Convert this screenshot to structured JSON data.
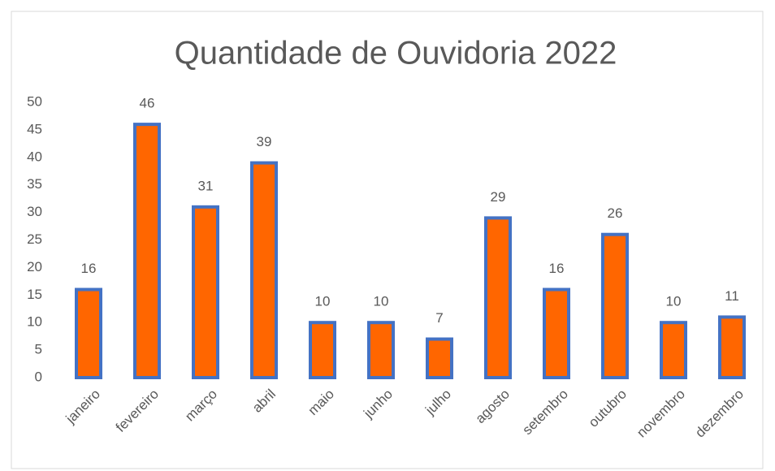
{
  "chart_data": {
    "type": "bar",
    "title": "Quantidade de Ouvidoria 2022",
    "categories": [
      "janeiro",
      "fevereiro",
      "março",
      "abril",
      "maio",
      "junho",
      "julho",
      "agosto",
      "setembro",
      "outubro",
      "novembro",
      "dezembro"
    ],
    "values": [
      16,
      46,
      31,
      39,
      10,
      10,
      7,
      29,
      16,
      26,
      10,
      11
    ],
    "color": "#ff6600",
    "edge_color": "#4472c4",
    "ylim": [
      0,
      50
    ],
    "yticks": [
      0,
      5,
      10,
      15,
      20,
      25,
      30,
      35,
      40,
      45,
      50
    ],
    "grid": false
  }
}
